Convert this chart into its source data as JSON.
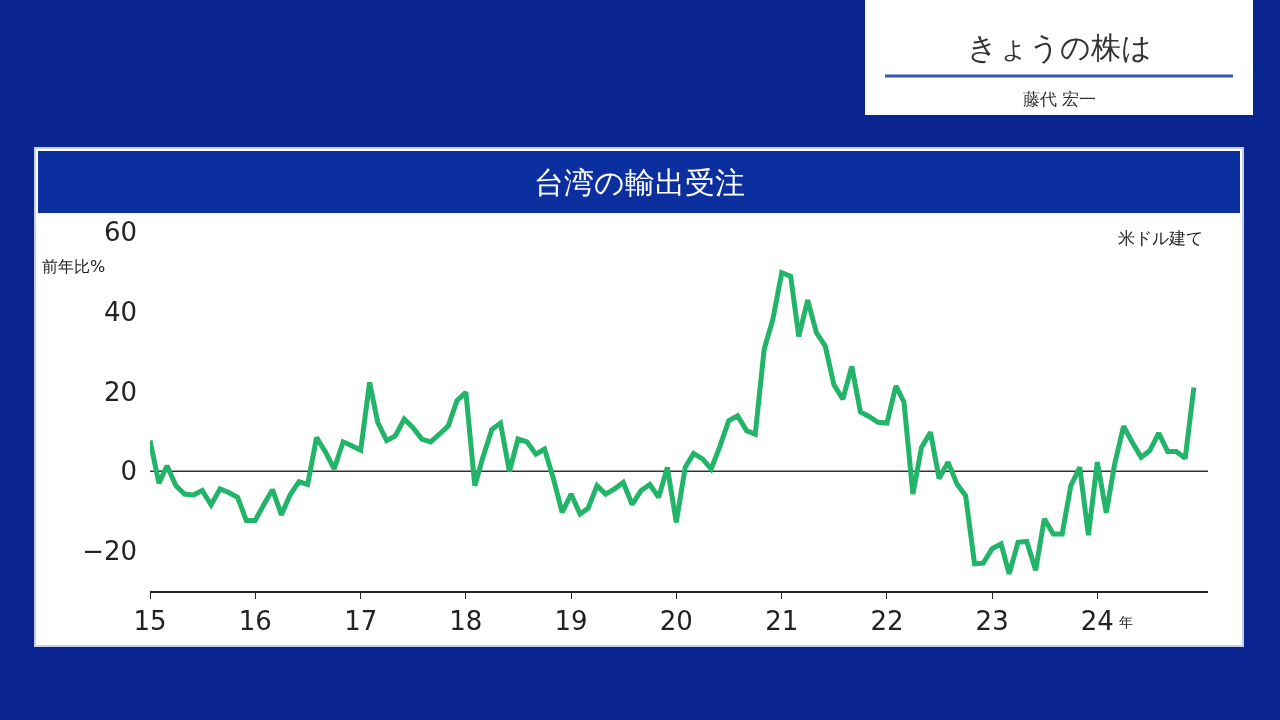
{
  "chart_data": {
    "type": "line",
    "title": "台湾の輸出受注",
    "subtitle": "きょうの株は",
    "ylabel": "前年比%",
    "xlabel": "年",
    "annotations": [
      "米ドル建て",
      "藤代 宏一"
    ],
    "x": [
      "2015-01",
      "2015-02",
      "2015-03",
      "2015-04",
      "2015-05",
      "2015-06",
      "2015-07",
      "2015-08",
      "2015-09",
      "2015-10",
      "2015-11",
      "2015-12",
      "2016-01",
      "2016-02",
      "2016-03",
      "2016-04",
      "2016-05",
      "2016-06",
      "2016-07",
      "2016-08",
      "2016-09",
      "2016-10",
      "2016-11",
      "2016-12",
      "2017-01",
      "2017-02",
      "2017-03",
      "2017-04",
      "2017-05",
      "2017-06",
      "2017-07",
      "2017-08",
      "2017-09",
      "2017-10",
      "2017-11",
      "2017-12",
      "2018-01",
      "2018-02",
      "2018-03",
      "2018-04",
      "2018-05",
      "2018-06",
      "2018-07",
      "2018-08",
      "2018-09",
      "2018-10",
      "2018-11",
      "2018-12",
      "2019-01",
      "2019-02",
      "2019-03",
      "2019-04",
      "2019-05",
      "2019-06",
      "2019-07",
      "2019-08",
      "2019-09",
      "2019-10",
      "2019-11",
      "2019-12",
      "2020-01",
      "2020-02",
      "2020-03",
      "2020-04",
      "2020-05",
      "2020-06",
      "2020-07",
      "2020-08",
      "2020-09",
      "2020-10",
      "2020-11",
      "2020-12",
      "2021-01",
      "2021-02",
      "2021-03",
      "2021-04",
      "2021-05",
      "2021-06",
      "2021-07",
      "2021-08",
      "2021-09",
      "2021-10",
      "2021-11",
      "2021-12",
      "2022-01",
      "2022-02",
      "2022-03",
      "2022-04",
      "2022-05",
      "2022-06",
      "2022-07",
      "2022-08",
      "2022-09",
      "2022-10",
      "2022-11",
      "2022-12",
      "2023-01",
      "2023-02",
      "2023-03",
      "2023-04",
      "2023-05",
      "2023-06",
      "2023-07",
      "2023-08",
      "2023-09",
      "2023-10",
      "2023-11",
      "2023-12",
      "2024-01",
      "2024-02",
      "2024-03",
      "2024-04",
      "2024-05",
      "2024-06",
      "2024-07",
      "2024-08",
      "2024-09",
      "2024-10",
      "2024-11",
      "2024-12"
    ],
    "series": [
      {
        "color": "#22b468",
        "values": [
          7.7,
          -3,
          1.4,
          -3.6,
          -5.7,
          -5.9,
          -4.8,
          -8.4,
          -4.4,
          -5.3,
          -6.5,
          -12.3,
          -12.3,
          -8.2,
          -4.6,
          -10.9,
          -5.9,
          -2.6,
          -3.3,
          8.5,
          4.8,
          0.6,
          7.4,
          6.4,
          5.3,
          22.3,
          12.3,
          7.7,
          8.9,
          13.1,
          11,
          8.1,
          7.4,
          9.3,
          11.4,
          17.7,
          19.8,
          -3.6,
          3.5,
          10.5,
          12.1,
          0,
          8.1,
          7.4,
          4.3,
          5.6,
          -1.9,
          -10.3,
          -5.7,
          -10.7,
          -9.3,
          -3.6,
          -5.7,
          -4.4,
          -2.8,
          -8.3,
          -4.8,
          -3.3,
          -6.5,
          1,
          -12.8,
          1,
          4.5,
          3.1,
          0.6,
          6.4,
          12.7,
          13.9,
          10.2,
          9.3,
          30.6,
          38.1,
          49.8,
          48.9,
          33.8,
          42.9,
          34.8,
          31.4,
          21.7,
          18.1,
          26.3,
          14.9,
          13.7,
          12.3,
          12.1,
          21.4,
          17.4,
          -5.7,
          6,
          9.8,
          -1.8,
          2.3,
          -3.2,
          -6.1,
          -23.2,
          -23,
          -19.4,
          -18.2,
          -25.7,
          -17.8,
          -17.6,
          -24.8,
          -11.9,
          -15.7,
          -15.7,
          -3.6,
          1,
          -16,
          2.3,
          -10.4,
          1.8,
          11.3,
          7.3,
          3.5,
          5.2,
          9.6,
          5,
          5,
          3.3,
          21
        ]
      }
    ],
    "xlim": [
      "2015-01",
      "2025-01-19"
    ],
    "xticks": [
      {
        "value": "2015",
        "label": "15"
      },
      {
        "value": "2016",
        "label": "16"
      },
      {
        "value": "2017",
        "label": "17"
      },
      {
        "value": "2018",
        "label": "18"
      },
      {
        "value": "2019",
        "label": "19"
      },
      {
        "value": "2020",
        "label": "20"
      },
      {
        "value": "2021",
        "label": "21"
      },
      {
        "value": "2022",
        "label": "22"
      },
      {
        "value": "2023",
        "label": "23"
      },
      {
        "value": "2024",
        "label": "24"
      }
    ],
    "ylim": [
      -30,
      60
    ],
    "yticks": [
      60,
      40,
      20,
      0,
      {
        "value": -20,
        "label": "−20"
      }
    ],
    "ref_lines": [
      {
        "axis": "y",
        "value": 0,
        "color": "#333333"
      }
    ],
    "marker": "none",
    "line_style": "solid"
  }
}
